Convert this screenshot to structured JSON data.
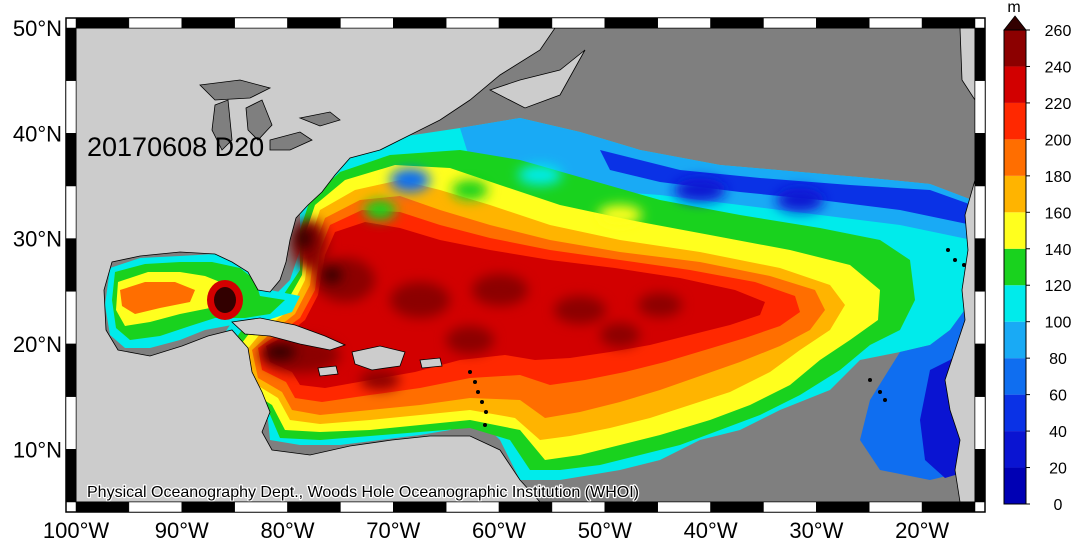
{
  "map": {
    "title": "20170608 D20",
    "credit": "Physical Oceanography Dept., Woods Hole Oceanographic Institution (WHOI)",
    "lon_ticks": [
      {
        "lon": -100,
        "label": "100°W"
      },
      {
        "lon": -90,
        "label": "90°W"
      },
      {
        "lon": -80,
        "label": "80°W"
      },
      {
        "lon": -70,
        "label": "70°W"
      },
      {
        "lon": -60,
        "label": "60°W"
      },
      {
        "lon": -50,
        "label": "50°W"
      },
      {
        "lon": -40,
        "label": "40°W"
      },
      {
        "lon": -30,
        "label": "30°W"
      },
      {
        "lon": -20,
        "label": "20°W"
      }
    ],
    "lat_ticks": [
      {
        "lat": 50,
        "label": "50°N"
      },
      {
        "lat": 40,
        "label": "40°N"
      },
      {
        "lat": 30,
        "label": "30°N"
      },
      {
        "lat": 20,
        "label": "20°N"
      },
      {
        "lat": 10,
        "label": "10°N"
      }
    ],
    "extent": {
      "lon_min": -100,
      "lon_max": -15,
      "lat_min": 5,
      "lat_max": 50
    },
    "colors": {
      "ocean_unmapped": "#7f7f7f",
      "land": "#cccccc",
      "frame_dark": "#000000",
      "frame_light": "#ffffff"
    }
  },
  "colorbar": {
    "unit": "m",
    "min": 0,
    "max": 260,
    "levels": [
      {
        "value": 0,
        "label": "0",
        "color": "#0000b4"
      },
      {
        "value": 20,
        "label": "20",
        "color": "#0a14d2"
      },
      {
        "value": 40,
        "label": "40",
        "color": "#0a32e6"
      },
      {
        "value": 60,
        "label": "60",
        "color": "#0f6ef0"
      },
      {
        "value": 80,
        "label": "80",
        "color": "#19aaf5"
      },
      {
        "value": 100,
        "label": "100",
        "color": "#00ebeb"
      },
      {
        "value": 120,
        "label": "120",
        "color": "#19d21e"
      },
      {
        "value": 140,
        "label": "140",
        "color": "#ffff1e"
      },
      {
        "value": 160,
        "label": "160",
        "color": "#ffb400"
      },
      {
        "value": 180,
        "label": "180",
        "color": "#ff6e00"
      },
      {
        "value": 200,
        "label": "200",
        "color": "#ff2800"
      },
      {
        "value": 220,
        "label": "220",
        "color": "#d20000"
      },
      {
        "value": 240,
        "label": "240",
        "color": "#8c0000"
      },
      {
        "value": 260,
        "label": "260",
        "color": "#320000"
      }
    ]
  }
}
